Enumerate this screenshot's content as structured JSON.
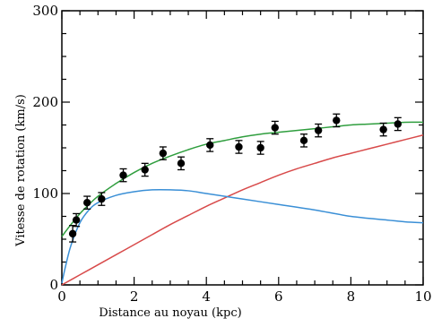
{
  "chart_data": {
    "type": "scatter",
    "xlabel": "Distance au noyau (kpc)",
    "ylabel": "Vitesse de rotation (km/s)",
    "xlim": [
      0,
      10
    ],
    "ylim": [
      0,
      300
    ],
    "xticks": [
      0,
      2,
      4,
      6,
      8,
      10
    ],
    "yticks": [
      0,
      100,
      200,
      300
    ],
    "grid": false,
    "legend": "none",
    "observations": {
      "color": "#000000",
      "points": [
        {
          "x": 0.3,
          "y": 56,
          "err": 9
        },
        {
          "x": 0.4,
          "y": 71,
          "err": 7
        },
        {
          "x": 0.7,
          "y": 90,
          "err": 7
        },
        {
          "x": 1.1,
          "y": 94,
          "err": 7
        },
        {
          "x": 1.7,
          "y": 120,
          "err": 7
        },
        {
          "x": 2.3,
          "y": 126,
          "err": 7
        },
        {
          "x": 2.8,
          "y": 144,
          "err": 7
        },
        {
          "x": 3.3,
          "y": 133,
          "err": 7
        },
        {
          "x": 4.1,
          "y": 153,
          "err": 7
        },
        {
          "x": 4.9,
          "y": 151,
          "err": 7
        },
        {
          "x": 5.5,
          "y": 150,
          "err": 7
        },
        {
          "x": 5.9,
          "y": 172,
          "err": 7
        },
        {
          "x": 6.7,
          "y": 158,
          "err": 7
        },
        {
          "x": 7.1,
          "y": 169,
          "err": 7
        },
        {
          "x": 7.6,
          "y": 180,
          "err": 7
        },
        {
          "x": 8.9,
          "y": 170,
          "err": 7
        },
        {
          "x": 9.3,
          "y": 176,
          "err": 7
        }
      ]
    },
    "series": [
      {
        "color": "#2f9e3e",
        "x": [
          0,
          0.25,
          0.5,
          0.75,
          1,
          1.5,
          2,
          2.5,
          3,
          3.5,
          4,
          4.5,
          5,
          5.5,
          6,
          6.5,
          7,
          7.5,
          8,
          8.5,
          9,
          9.5,
          10
        ],
        "y": [
          53,
          66,
          78,
          88,
          97,
          111,
          123,
          133,
          141,
          148,
          154,
          158,
          162,
          165,
          167,
          169,
          171,
          173,
          175,
          176,
          177,
          178,
          178
        ]
      },
      {
        "color": "#d84a4a",
        "x": [
          0,
          0.5,
          1,
          1.5,
          2,
          2.5,
          3,
          3.5,
          4,
          4.5,
          5,
          5.5,
          6,
          6.5,
          7,
          7.5,
          8,
          8.5,
          9,
          9.5,
          10
        ],
        "y": [
          0,
          11,
          22,
          33,
          44,
          55,
          66,
          76,
          86,
          95,
          104,
          112,
          120,
          127,
          133,
          139,
          144,
          149,
          154,
          159,
          164
        ]
      },
      {
        "color": "#3a8fd6",
        "x": [
          0,
          0.1,
          0.25,
          0.5,
          0.75,
          1,
          1.5,
          2,
          2.5,
          3,
          3.5,
          4,
          5,
          6,
          7,
          8,
          9,
          9.5,
          10
        ],
        "y": [
          2,
          20,
          43,
          68,
          82,
          90,
          98,
          102,
          104,
          104,
          103,
          100,
          94,
          88,
          82,
          75,
          71,
          69,
          68
        ]
      }
    ]
  }
}
